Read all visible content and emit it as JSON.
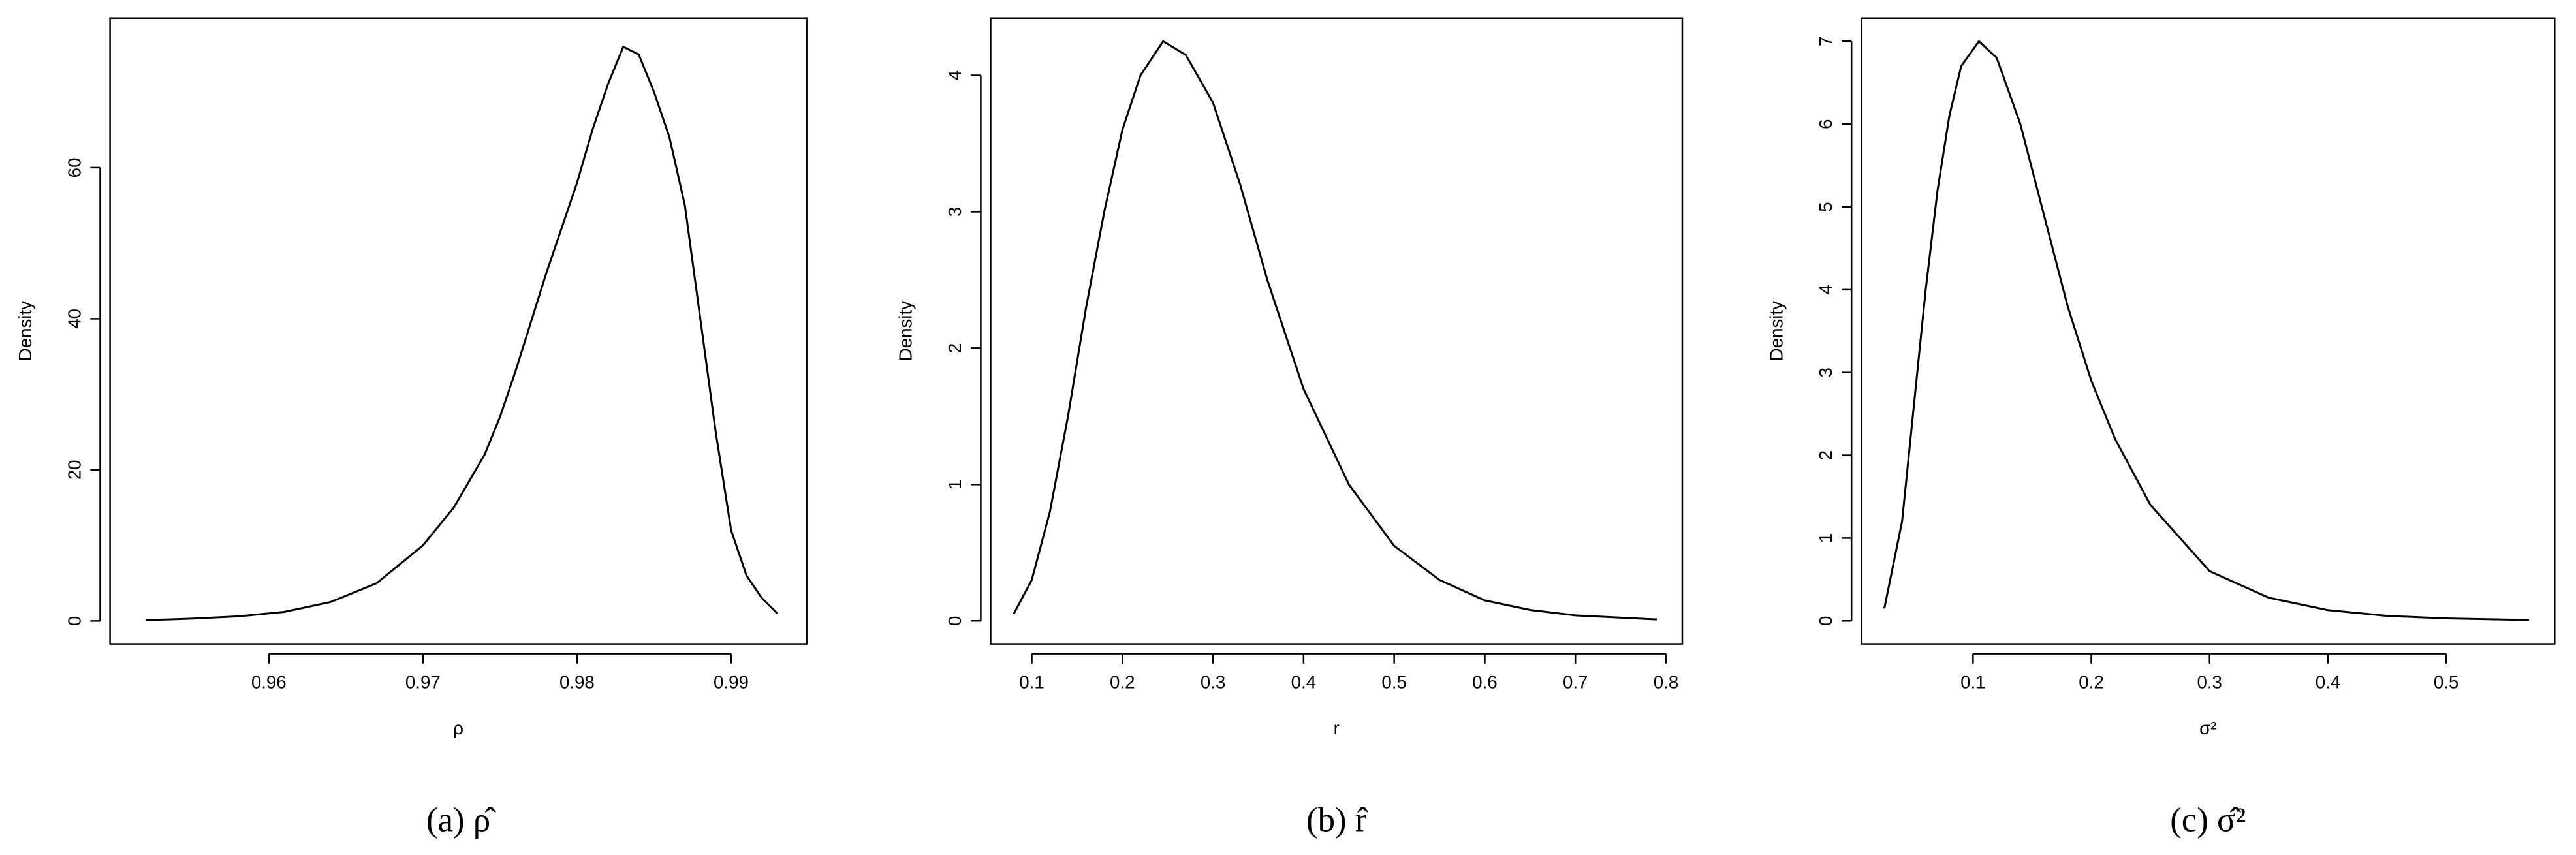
{
  "chart_data": [
    {
      "type": "line",
      "xlabel": "ρ",
      "ylabel": "Density",
      "caption": "(a)  ρ̂",
      "x": [
        0.952,
        0.955,
        0.958,
        0.961,
        0.964,
        0.967,
        0.97,
        0.972,
        0.974,
        0.975,
        0.976,
        0.978,
        0.98,
        0.981,
        0.982,
        0.983,
        0.984,
        0.985,
        0.986,
        0.987,
        0.988,
        0.989,
        0.99,
        0.991,
        0.992,
        0.993
      ],
      "series": [
        {
          "color": "#000000",
          "values": [
            0.1,
            0.3,
            0.6,
            1.2,
            2.5,
            5,
            10,
            15,
            22,
            27,
            33,
            46,
            58,
            65,
            71,
            76,
            75,
            70,
            64,
            55,
            40,
            25,
            12,
            6,
            3,
            1
          ]
        }
      ],
      "xlim": [
        0.9497,
        0.9949
      ],
      "ylim": [
        -3.04,
        79.8
      ],
      "xticks": [
        0.96,
        0.97,
        0.98,
        0.99
      ],
      "yticks": [
        0,
        20,
        40,
        60
      ]
    },
    {
      "type": "line",
      "xlabel": "r",
      "ylabel": "Density",
      "caption": "(b)  r̂",
      "x": [
        0.08,
        0.1,
        0.12,
        0.14,
        0.16,
        0.18,
        0.2,
        0.22,
        0.245,
        0.27,
        0.3,
        0.33,
        0.36,
        0.4,
        0.45,
        0.5,
        0.55,
        0.6,
        0.65,
        0.7,
        0.79
      ],
      "series": [
        {
          "color": "#000000",
          "values": [
            0.05,
            0.3,
            0.8,
            1.5,
            2.3,
            3.0,
            3.6,
            4.0,
            4.25,
            4.15,
            3.8,
            3.2,
            2.5,
            1.7,
            1.0,
            0.55,
            0.3,
            0.15,
            0.08,
            0.04,
            0.01
          ]
        }
      ],
      "xlim": [
        0.0546,
        0.818
      ],
      "ylim": [
        -0.169,
        4.42
      ],
      "xticks": [
        0.1,
        0.2,
        0.3,
        0.4,
        0.5,
        0.6,
        0.7,
        0.8
      ],
      "yticks": [
        0,
        1,
        2,
        3,
        4
      ]
    },
    {
      "type": "line",
      "xlabel": "σ²",
      "ylabel": "Density",
      "caption": "(c)  σ̂²",
      "x": [
        0.025,
        0.04,
        0.05,
        0.06,
        0.07,
        0.08,
        0.09,
        0.105,
        0.12,
        0.14,
        0.16,
        0.18,
        0.2,
        0.22,
        0.25,
        0.3,
        0.35,
        0.4,
        0.45,
        0.5,
        0.57
      ],
      "series": [
        {
          "color": "#000000",
          "values": [
            0.15,
            1.2,
            2.6,
            4.0,
            5.2,
            6.1,
            6.7,
            7.0,
            6.8,
            6.0,
            4.9,
            3.8,
            2.9,
            2.2,
            1.4,
            0.6,
            0.28,
            0.13,
            0.06,
            0.03,
            0.01
          ]
        }
      ],
      "xlim": [
        0.0056,
        0.5917
      ],
      "ylim": [
        -0.278,
        7.28
      ],
      "xticks": [
        0.1,
        0.2,
        0.3,
        0.4,
        0.5
      ],
      "yticks": [
        0,
        1,
        2,
        3,
        4,
        5,
        6,
        7
      ]
    }
  ]
}
